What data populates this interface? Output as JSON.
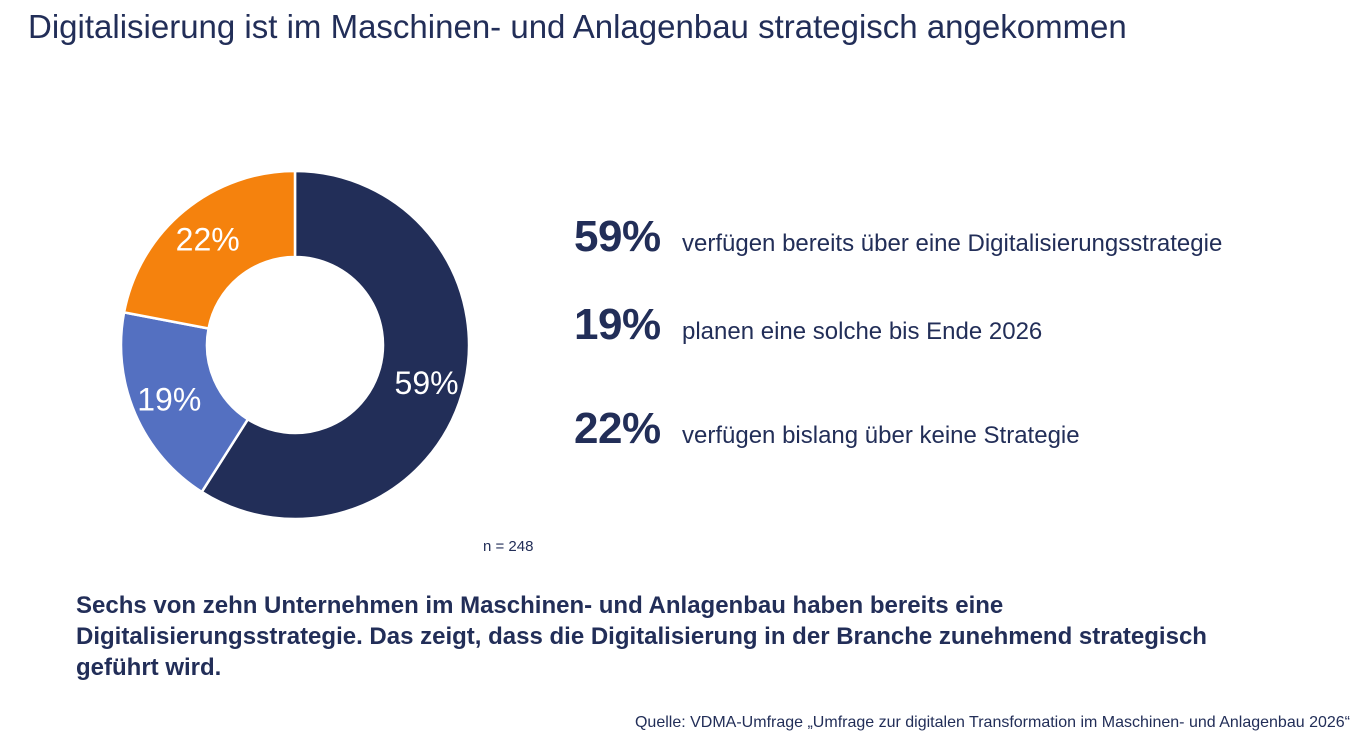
{
  "title": "Digitalisierung ist im Maschinen- und Anlagenbau strategisch angekommen",
  "chart_data": {
    "type": "pie",
    "subtype": "donut",
    "categories": [
      "verfügen bereits über eine Digitalisierungsstrategie",
      "planen eine solche bis Ende 2026",
      "verfügen bislang über keine Strategie"
    ],
    "values": [
      59,
      19,
      22
    ],
    "unit": "%",
    "colors": [
      "#222e58",
      "#5470c1",
      "#f5820d"
    ],
    "data_labels": [
      "59%",
      "19%",
      "22%"
    ],
    "start": "12 o'clock, clockwise"
  },
  "legend": [
    {
      "pct": "59%",
      "text": "verfügen bereits über eine Digitalisierungsstrategie"
    },
    {
      "pct": "19%",
      "text": "planen eine solche bis Ende 2026"
    },
    {
      "pct": "22%",
      "text": "verfügen bislang über keine Strategie"
    }
  ],
  "sample_size": "n = 248",
  "summary": "Sechs von zehn Unternehmen im Maschinen- und Anlagenbau haben bereits eine Digitalisierungsstrategie. Das zeigt, dass die Digitalisierung in der Branche zunehmend strategisch geführt wird.",
  "source": "Quelle: VDMA-Umfrage „Umfrage zur digitalen Transformation im Maschinen- und Anlagenbau 2026“"
}
